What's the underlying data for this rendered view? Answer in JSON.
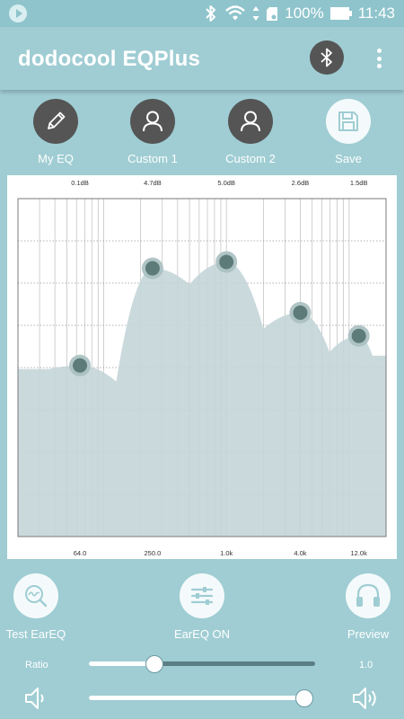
{
  "status_bar": {
    "battery_percent": "100%",
    "time": "11:43",
    "icons": [
      "play-circle-icon",
      "bluetooth-icon",
      "wifi-icon",
      "data-arrows-icon",
      "sd-card-icon",
      "battery-icon"
    ]
  },
  "app_bar": {
    "title": "dodocool EQPlus",
    "bluetooth_icon": "bluetooth-icon",
    "menu_icon": "more-vert-icon"
  },
  "presets": [
    {
      "label": "My EQ",
      "icon": "pencil-icon",
      "selected": false
    },
    {
      "label": "Custom 1",
      "icon": "person-icon",
      "selected": false
    },
    {
      "label": "Custom 2",
      "icon": "person-icon",
      "selected": false
    },
    {
      "label": "Save",
      "icon": "save-icon",
      "selected": true
    }
  ],
  "equalizer": {
    "gain_labels": [
      "0.1dB",
      "4.7dB",
      "5.0dB",
      "2.6dB",
      "1.5dB"
    ],
    "frequency_labels": [
      "64.0",
      "250.0",
      "1.0k",
      "4.0k",
      "12.0k"
    ],
    "bands": [
      {
        "frequency": "64.0",
        "gain_db": 0.1
      },
      {
        "frequency": "250.0",
        "gain_db": 4.7
      },
      {
        "frequency": "1.0k",
        "gain_db": 5.0
      },
      {
        "frequency": "4.0k",
        "gain_db": 2.6
      },
      {
        "frequency": "12.0k",
        "gain_db": 1.5
      }
    ],
    "colors": {
      "fill": "#c4d5d8",
      "handle": "#5d7b78",
      "grid": "#bdbdbd"
    }
  },
  "bottom_buttons": [
    {
      "label": "Test EarEQ",
      "icon": "search-wave-icon"
    },
    {
      "label": "EarEQ ON",
      "icon": "sliders-icon"
    },
    {
      "label": "Preview",
      "icon": "headphones-icon"
    }
  ],
  "ratio": {
    "label": "Ratio",
    "value": "1.0",
    "position": 0.29
  },
  "volume": {
    "position": 0.99,
    "low_icon": "volume-low-icon",
    "high_icon": "volume-high-icon"
  },
  "colors": {
    "background": "#9fcdd3",
    "dark_circle": "#555555",
    "light_circle": "#f4fafb"
  }
}
